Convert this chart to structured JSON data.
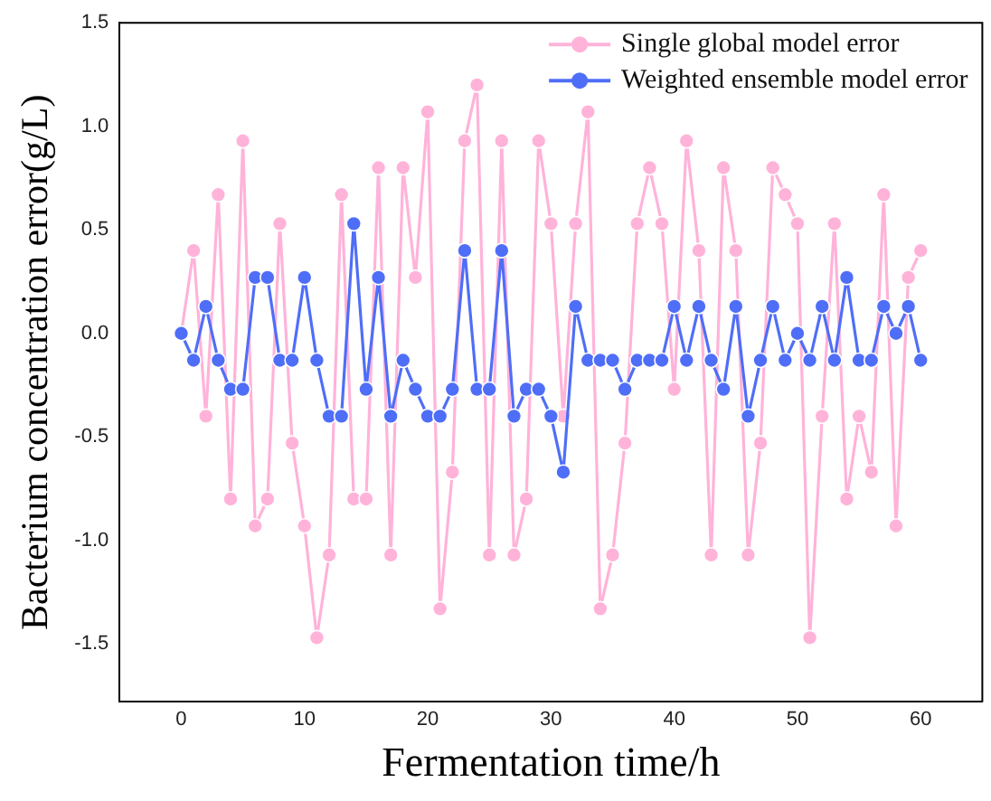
{
  "chart_data": {
    "type": "line",
    "xlabel": "Fermentation time/h",
    "ylabel": "Bacterium concentration error(g/L)",
    "x": [
      0,
      1,
      2,
      3,
      4,
      5,
      6,
      7,
      8,
      9,
      10,
      11,
      12,
      13,
      14,
      15,
      16,
      17,
      18,
      19,
      20,
      21,
      22,
      23,
      24,
      25,
      26,
      27,
      28,
      29,
      30,
      31,
      32,
      33,
      34,
      35,
      36,
      37,
      38,
      39,
      40,
      41,
      42,
      43,
      44,
      45,
      46,
      47,
      48,
      49,
      50,
      51,
      52,
      53,
      54,
      55,
      56,
      57,
      58,
      59,
      60
    ],
    "series": [
      {
        "name": "Single global model error",
        "color": "#ffb3d9",
        "values": [
          0,
          0.4,
          -0.4,
          0.67,
          -0.8,
          0.93,
          -0.93,
          -0.8,
          0.53,
          -0.53,
          -0.93,
          -1.47,
          -1.07,
          0.67,
          -0.8,
          -0.8,
          0.8,
          -1.07,
          0.8,
          0.27,
          1.07,
          -1.33,
          -0.67,
          0.93,
          1.2,
          -1.07,
          0.93,
          -1.07,
          -0.8,
          0.93,
          0.53,
          -0.4,
          0.53,
          1.07,
          -1.33,
          -1.07,
          -0.53,
          0.53,
          0.8,
          0.53,
          -0.27,
          0.93,
          0.4,
          -1.07,
          0.8,
          0.4,
          -1.07,
          -0.53,
          0.8,
          0.67,
          0.53,
          -1.47,
          -0.4,
          0.53,
          -0.8,
          -0.4,
          -0.67,
          0.67,
          -0.93,
          0.27,
          0.4
        ]
      },
      {
        "name": "Weighted ensemble model error",
        "color": "#4f6ef7",
        "values": [
          0,
          -0.13,
          0.13,
          -0.13,
          -0.27,
          -0.27,
          0.27,
          0.27,
          -0.13,
          -0.13,
          0.27,
          -0.13,
          -0.4,
          -0.4,
          0.53,
          -0.27,
          0.27,
          -0.4,
          -0.13,
          -0.27,
          -0.4,
          -0.4,
          -0.27,
          0.4,
          -0.27,
          -0.27,
          0.4,
          -0.4,
          -0.27,
          -0.27,
          -0.4,
          -0.67,
          0.13,
          -0.13,
          -0.13,
          -0.13,
          -0.27,
          -0.13,
          -0.13,
          -0.13,
          0.13,
          -0.13,
          0.13,
          -0.13,
          -0.27,
          0.13,
          -0.4,
          -0.13,
          0.13,
          -0.13,
          0,
          -0.13,
          0.13,
          -0.13,
          0.27,
          -0.13,
          -0.13,
          0.13,
          0,
          0.13,
          -0.13
        ]
      }
    ],
    "xlim": [
      -5,
      65
    ],
    "xticks": [
      0,
      10,
      20,
      30,
      40,
      50,
      60
    ],
    "ylim": [
      -1.78,
      1.5
    ],
    "yticks": [
      {
        "value": -1.5,
        "label": "-1.5"
      },
      {
        "value": -1,
        "label": "-1.0"
      },
      {
        "value": -0.5,
        "label": "-0.5"
      },
      {
        "value": 0,
        "label": "0.0"
      },
      {
        "value": 0.5,
        "label": "0.5"
      },
      {
        "value": 1,
        "label": "1.0"
      },
      {
        "value": 1.5,
        "label": "1.5"
      }
    ],
    "grid": false,
    "legend": "top right",
    "marker": "circle",
    "line_style": "solid"
  }
}
